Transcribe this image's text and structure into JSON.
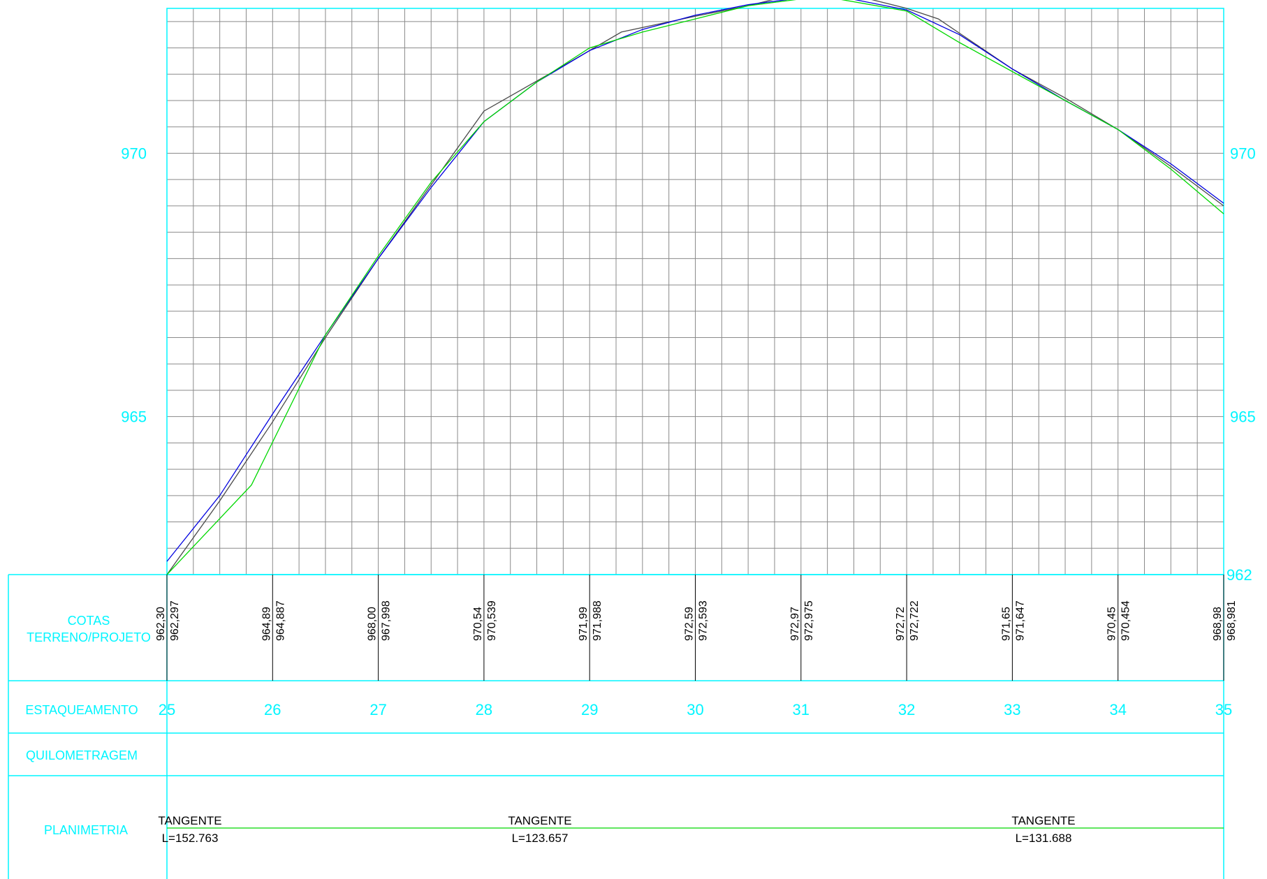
{
  "chart_data": {
    "type": "line",
    "x_label_name": "ESTAQUEAMENTO",
    "stations": [
      25,
      26,
      27,
      28,
      29,
      30,
      31,
      32,
      33,
      34,
      35
    ],
    "y_axis": {
      "ticks": [
        965,
        970
      ],
      "tick_labels": [
        "965",
        "970"
      ],
      "bottom_label": "962",
      "ylim": [
        962,
        972.75
      ]
    },
    "row_labels": {
      "cotas_line1": "COTAS",
      "cotas_line2": "TERRENO/PROJETO",
      "estaqueamento": "ESTAQUEAMENTO",
      "quilometragem": "QUILOMETRAGEM",
      "planimetria": "PLANIMETRIA"
    },
    "cotas": [
      {
        "station": 25,
        "terreno": "962,30",
        "projeto": "962,297"
      },
      {
        "station": 26,
        "terreno": "964,89",
        "projeto": "964,887"
      },
      {
        "station": 27,
        "terreno": "968,00",
        "projeto": "967,998"
      },
      {
        "station": 28,
        "terreno": "970,54",
        "projeto": "970,539"
      },
      {
        "station": 29,
        "terreno": "971,99",
        "projeto": "971,988"
      },
      {
        "station": 30,
        "terreno": "972,59",
        "projeto": "972,593"
      },
      {
        "station": 31,
        "terreno": "972,97",
        "projeto": "972,975"
      },
      {
        "station": 32,
        "terreno": "972,72",
        "projeto": "972,722"
      },
      {
        "station": 33,
        "terreno": "971,65",
        "projeto": "971,647"
      },
      {
        "station": 34,
        "terreno": "970,45",
        "projeto": "970,454"
      },
      {
        "station": 35,
        "terreno": "968,98",
        "projeto": "968,981"
      }
    ],
    "series": [
      {
        "color": "#4a4a4a",
        "x": [
          25,
          25.5,
          26,
          26.5,
          27,
          27.5,
          28,
          28.7,
          29.3,
          30,
          30.5,
          31,
          31.5,
          32,
          32.3,
          33,
          33.5,
          34,
          34.5,
          35
        ],
        "y": [
          962.0,
          963.4,
          964.9,
          966.5,
          968.0,
          969.4,
          970.8,
          971.6,
          972.3,
          972.6,
          972.8,
          973.05,
          973.0,
          972.75,
          972.55,
          971.6,
          971.05,
          970.45,
          969.75,
          969.0
        ]
      },
      {
        "color": "#0000e0",
        "x": [
          25,
          25.5,
          26,
          26.5,
          27,
          27.5,
          28,
          28.5,
          29,
          29.5,
          30,
          30.5,
          31,
          31.5,
          32,
          32.5,
          33,
          33.5,
          34,
          34.5,
          35
        ],
        "y": [
          962.25,
          963.5,
          965.05,
          966.55,
          968.0,
          969.35,
          970.6,
          971.35,
          971.95,
          972.35,
          972.62,
          972.82,
          972.95,
          972.92,
          972.72,
          972.25,
          971.6,
          971.0,
          970.45,
          969.8,
          969.05
        ]
      },
      {
        "color": "#00d800",
        "x": [
          25,
          25.8,
          26.5,
          27,
          27.5,
          28,
          28.5,
          29,
          29.5,
          30,
          30.5,
          31.2,
          32,
          32.5,
          33,
          34,
          34.5,
          35
        ],
        "y": [
          962.0,
          963.7,
          966.55,
          968.05,
          969.45,
          970.6,
          971.35,
          972.0,
          972.3,
          972.55,
          972.8,
          972.98,
          972.7,
          972.1,
          971.55,
          970.45,
          969.7,
          968.85
        ]
      }
    ],
    "planimetria": [
      {
        "text": "TANGENTE",
        "length": "L=152.763"
      },
      {
        "text": "TANGENTE",
        "length": "L=123.657"
      },
      {
        "text": "TANGENTE",
        "length": "L=131.688"
      }
    ]
  }
}
